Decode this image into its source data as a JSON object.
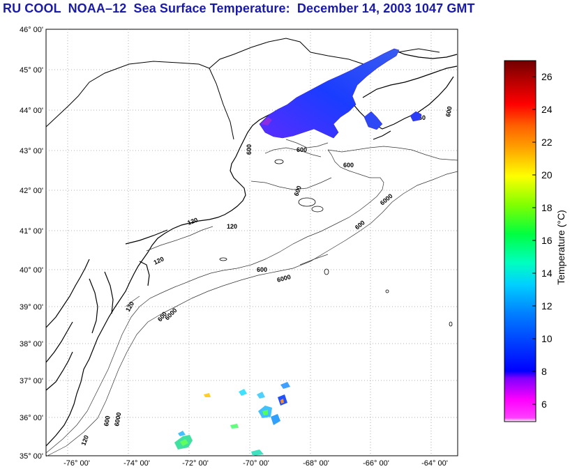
{
  "title": "RU COOL  NOAA–12  Sea Surface Temperature:  December 14, 2003 1047 GMT",
  "map": {
    "lat_labels": [
      "46° 00'",
      "45° 00'",
      "44° 00'",
      "43° 00'",
      "42° 00'",
      "41° 00'",
      "40° 00'",
      "39° 00'",
      "38° 00'",
      "37° 00'",
      "36° 00'",
      "35° 00'"
    ],
    "lon_labels": [
      "-76° 00'",
      "-74° 00'",
      "-72° 00'",
      "-70° 00'",
      "-68° 00'",
      "-66° 00'",
      "-64° 00'"
    ],
    "lat_range": [
      35,
      46
    ],
    "lon_range": [
      -77,
      -63.5
    ],
    "isobath_labels": [
      "60",
      "120",
      "600",
      "6000"
    ]
  },
  "colorbar": {
    "label": "Temperature (°C)",
    "ticks": [
      "26",
      "24",
      "22",
      "20",
      "18",
      "16",
      "14",
      "12",
      "10",
      "8",
      "6"
    ],
    "range": [
      5,
      27
    ],
    "colors": [
      "#ff00ff",
      "#0000ff",
      "#00ffff",
      "#00ff00",
      "#ffff00",
      "#ff8000",
      "#ff0000",
      "#800000"
    ]
  }
}
